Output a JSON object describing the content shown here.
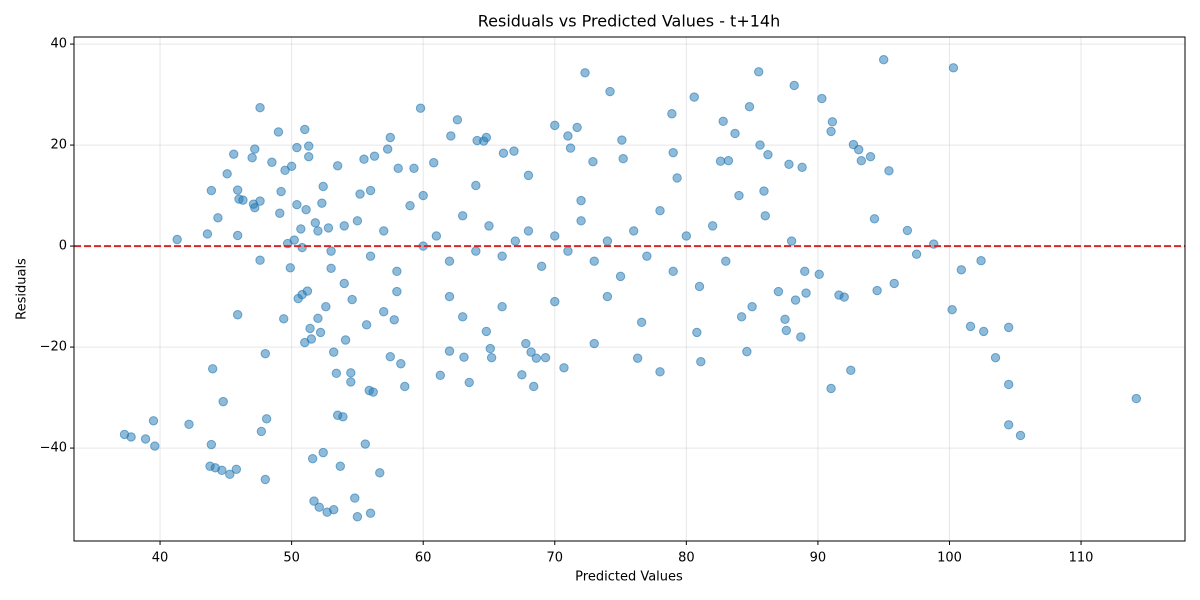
{
  "chart_data": {
    "type": "scatter",
    "title": "Residuals vs Predicted Values - t+14h",
    "x_label": "Predicted Values",
    "y_label": "Residuals",
    "xlim": [
      33.46,
      117.9
    ],
    "ylim": [
      -58.4,
      41.4
    ],
    "xticks": [
      40,
      50,
      60,
      70,
      80,
      90,
      100,
      110
    ],
    "yticks": [
      {
        "value": -40,
        "label": "−40"
      },
      {
        "value": -20,
        "label": "−20"
      },
      0,
      20,
      40
    ],
    "grid": true,
    "color": "#1f77b4",
    "hline": {
      "value": 0,
      "color": "#d62728",
      "style": "dashed"
    },
    "series": [
      {
        "name": "Residuals",
        "color": "#1f77b4",
        "x": [
          37.3,
          37.8,
          38.9,
          39.5,
          39.6,
          41.3,
          42.2,
          43.6,
          43.9,
          43.9,
          44.0,
          43.8,
          44.2,
          44.7,
          44.8,
          44.4,
          45.1,
          45.3,
          45.6,
          45.8,
          45.9,
          45.9,
          45.9,
          46.0,
          46.3,
          47.0,
          47.1,
          47.2,
          47.2,
          47.6,
          47.6,
          47.7,
          47.6,
          48.0,
          48.0,
          48.1,
          48.5,
          49.0,
          49.1,
          49.2,
          49.4,
          49.5,
          49.7,
          49.9,
          50.0,
          50.2,
          50.4,
          50.4,
          50.5,
          50.7,
          50.8,
          50.8,
          51.0,
          51.0,
          51.1,
          51.2,
          51.3,
          51.3,
          51.4,
          51.5,
          51.6,
          51.7,
          51.8,
          52.0,
          52.1,
          52.2,
          52.3,
          52.4,
          52.4,
          52.6,
          52.7,
          52.8,
          53.0,
          53.2,
          53.2,
          53.4,
          53.5,
          53.5,
          53.7,
          53.9,
          54.0,
          54.1,
          54.5,
          54.5,
          54.6,
          54.8,
          55.0,
          55.2,
          55.5,
          55.6,
          55.7,
          55.9,
          56.0,
          56.2,
          56.3,
          56.7,
          57.3,
          57.5,
          57.5,
          57.8,
          58.1,
          58.3,
          58.6,
          59.3,
          59.8,
          60.8,
          61.3,
          62.0,
          62.1,
          62.6,
          63.1,
          63.5,
          64.1,
          64.6,
          64.8,
          64.8,
          65.2,
          65.1,
          66.1,
          66.9,
          67.5,
          67.8,
          68.2,
          68.4,
          68.6,
          69.3,
          70.0,
          70.7,
          71.0,
          71.2,
          71.7,
          72.3,
          72.9,
          73.0,
          74.2,
          75.1,
          75.2,
          76.3,
          76.6,
          78.0,
          78.9,
          79.3,
          79.0,
          80.6,
          81.1,
          80.8,
          82.6,
          82.8,
          83.2,
          83.7,
          84.2,
          84.6,
          84.8,
          85.5,
          85.6,
          85.9,
          86.2,
          87.5,
          87.6,
          87.8,
          88.2,
          88.3,
          88.8,
          88.7,
          89.1,
          90.3,
          90.1,
          91.0,
          91.1,
          91.0,
          91.6,
          92.0,
          92.5,
          92.7,
          93.1,
          93.3,
          94.0,
          94.3,
          94.5,
          95.0,
          95.4,
          95.8,
          96.8,
          97.5,
          98.8,
          100.3,
          100.2,
          100.9,
          101.6,
          102.4,
          102.6,
          103.5,
          104.5,
          104.5,
          104.5,
          105.4,
          114.2,
          55,
          56,
          57,
          58,
          59,
          60,
          61,
          62,
          63,
          64,
          65,
          66,
          67,
          68,
          69,
          70,
          71,
          72,
          73,
          74,
          75,
          76,
          77,
          78,
          79,
          80,
          81,
          82,
          83,
          84,
          85,
          86,
          87,
          88,
          89,
          60,
          62,
          64,
          66,
          68,
          70,
          72,
          74,
          56,
          58,
          54,
          53,
          52,
          57,
          63
        ],
        "values": [
          -37.3,
          -37.8,
          -38.2,
          -34.6,
          -39.6,
          1.3,
          -35.3,
          2.4,
          11,
          -39.3,
          -24.3,
          -43.6,
          -43.9,
          -44.4,
          -30.8,
          5.6,
          14.3,
          -45.2,
          18.2,
          -44.2,
          2.1,
          -13.6,
          11.1,
          9.3,
          9.1,
          17.5,
          8.3,
          19.2,
          7.6,
          27.4,
          -2.8,
          -36.7,
          8.9,
          -46.2,
          -21.3,
          -34.2,
          16.6,
          22.6,
          6.5,
          10.8,
          -14.4,
          15,
          0.5,
          -4.3,
          15.8,
          1.2,
          19.5,
          8.2,
          -10.4,
          3.4,
          -0.3,
          -9.6,
          23.1,
          -19.1,
          7.2,
          -8.9,
          17.7,
          19.8,
          -16.3,
          -18.4,
          -42.1,
          -50.5,
          4.6,
          -14.3,
          -51.7,
          -17.1,
          8.5,
          11.8,
          -40.9,
          -12,
          -52.7,
          3.6,
          -4.4,
          -52.2,
          -21.0,
          -25.2,
          15.9,
          -33.5,
          -43.6,
          -33.8,
          -7.4,
          -18.6,
          -25.1,
          -26.9,
          -10.6,
          -49.9,
          -53.6,
          10.3,
          17.2,
          -39.2,
          -15.6,
          -28.6,
          -52.9,
          -28.9,
          17.8,
          -44.9,
          19.2,
          21.5,
          -21.9,
          -14.6,
          15.4,
          -23.3,
          -27.8,
          15.4,
          27.3,
          16.5,
          -25.6,
          -20.8,
          21.8,
          25,
          -22,
          -27.0,
          20.9,
          20.8,
          21.5,
          -16.9,
          -22.1,
          -20.3,
          18.4,
          18.8,
          -25.5,
          -19.3,
          -21.0,
          -27.8,
          -22.2,
          -22.1,
          23.9,
          -24.1,
          21.8,
          19.4,
          23.5,
          34.3,
          16.7,
          -19.3,
          30.6,
          21.0,
          17.3,
          -22.2,
          -15.1,
          -24.9,
          26.2,
          13.5,
          18.5,
          29.5,
          -22.9,
          -17.1,
          16.8,
          24.7,
          16.9,
          22.3,
          -14.0,
          -20.9,
          27.6,
          34.5,
          20.0,
          10.9,
          18.1,
          -14.5,
          -16.7,
          16.2,
          31.8,
          -10.7,
          15.6,
          -18.0,
          -9.3,
          29.2,
          -5.6,
          22.7,
          24.6,
          -28.2,
          -9.7,
          -10.1,
          -24.6,
          20.1,
          19.1,
          16.9,
          17.7,
          5.4,
          -8.8,
          36.9,
          14.9,
          -7.4,
          3.1,
          -1.6,
          0.4,
          35.3,
          -12.6,
          -4.7,
          -15.9,
          -2.9,
          -16.9,
          -22.1,
          -16.1,
          -27.4,
          -35.4,
          -37.5,
          -30.2,
          5,
          -2,
          3,
          -5,
          8,
          0,
          2,
          -3,
          6,
          -1,
          4,
          -2,
          1,
          3,
          -4,
          2,
          -1,
          5,
          -3,
          1,
          -6,
          3,
          -2,
          7,
          -5,
          2,
          -8,
          4,
          -3,
          10,
          -12,
          6,
          -9,
          1,
          -5,
          10,
          -10,
          12,
          -12,
          14,
          -11,
          9,
          -10,
          11,
          -9,
          4,
          -1,
          3,
          -13,
          -14
        ]
      }
    ]
  }
}
